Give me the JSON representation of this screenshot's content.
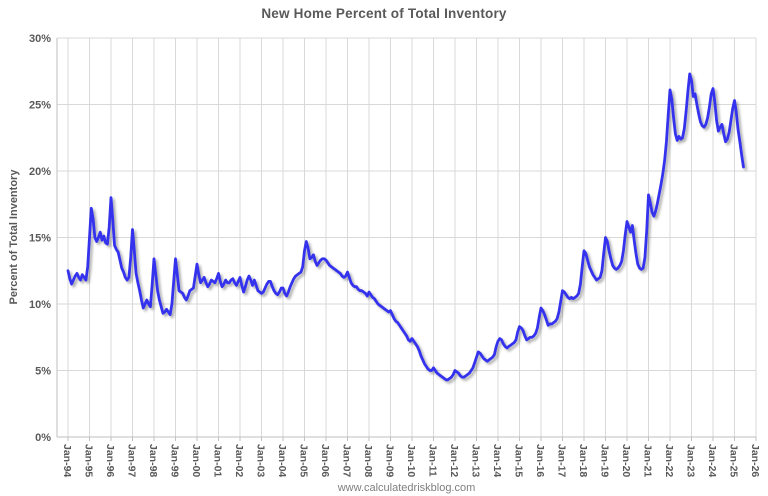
{
  "title": "New Home Percent of Total Inventory",
  "watermark": "www.calculatedriskblog.com",
  "chart_data": {
    "type": "line",
    "title": "New Home Percent of Total Inventory",
    "xlabel": "",
    "ylabel": "Percent of Total Inventory",
    "ylim": [
      0,
      30
    ],
    "y_tick_labels": [
      "0%",
      "5%",
      "10%",
      "15%",
      "20%",
      "25%",
      "30%"
    ],
    "x_tick_labels": [
      "Jan-94",
      "Jan-95",
      "Jan-96",
      "Jan-97",
      "Jan-98",
      "Jan-99",
      "Jan-00",
      "Jan-01",
      "Jan-02",
      "Jan-03",
      "Jan-04",
      "Jan-05",
      "Jan-06",
      "Jan-07",
      "Jan-08",
      "Jan-09",
      "Jan-10",
      "Jan-11",
      "Jan-12",
      "Jan-13",
      "Jan-14",
      "Jan-15",
      "Jan-16",
      "Jan-17",
      "Jan-18",
      "Jan-19",
      "Jan-20",
      "Jan-21",
      "Jan-22",
      "Jan-23",
      "Jan-24",
      "Jan-25",
      "Jan-26"
    ],
    "grid": true,
    "legend": "none",
    "frequency": "monthly",
    "x_start": "Jan-1994",
    "x_end": "Jun-2025",
    "line_color": "#3433EE",
    "grid_color": "#D9D9D9",
    "axis_color": "#BFBFBF",
    "label_color": "#595959",
    "series": [
      {
        "name": "New Home Percent of Total Inventory",
        "values": [
          12.5,
          11.9,
          11.5,
          11.8,
          12.1,
          12.3,
          12.0,
          11.8,
          12.2,
          12.0,
          11.8,
          12.8,
          15.0,
          17.2,
          16.4,
          15.0,
          14.7,
          15.0,
          15.4,
          14.8,
          15.1,
          14.6,
          14.5,
          15.8,
          18.0,
          16.3,
          14.4,
          14.1,
          13.9,
          13.3,
          12.7,
          12.4,
          12.0,
          11.8,
          12.0,
          13.5,
          15.6,
          14.0,
          12.3,
          11.6,
          11.0,
          10.3,
          9.7,
          10.0,
          10.3,
          10.0,
          9.8,
          11.5,
          13.4,
          12.2,
          11.0,
          10.3,
          9.8,
          9.3,
          9.4,
          9.6,
          9.4,
          9.2,
          10.0,
          11.7,
          13.4,
          12.2,
          11.0,
          10.9,
          10.8,
          10.5,
          10.3,
          10.6,
          11.0,
          11.1,
          11.2,
          12.1,
          13.0,
          12.2,
          11.6,
          11.8,
          12.0,
          11.6,
          11.3,
          11.5,
          11.8,
          11.7,
          11.6,
          11.9,
          12.3,
          11.7,
          11.3,
          11.5,
          11.8,
          11.6,
          11.6,
          11.8,
          11.9,
          11.6,
          11.4,
          11.7,
          12.0,
          11.4,
          10.9,
          11.3,
          11.8,
          12.1,
          11.8,
          11.4,
          11.8,
          11.4,
          11.0,
          10.9,
          10.8,
          10.9,
          11.2,
          11.5,
          11.7,
          11.7,
          11.3,
          11.0,
          10.8,
          10.7,
          10.9,
          11.2,
          11.2,
          10.8,
          10.6,
          10.9,
          11.3,
          11.6,
          11.9,
          12.1,
          12.2,
          12.3,
          12.4,
          12.8,
          14.0,
          14.7,
          14.2,
          13.4,
          13.5,
          13.7,
          13.2,
          12.9,
          13.1,
          13.3,
          13.4,
          13.4,
          13.3,
          13.1,
          12.9,
          12.8,
          12.7,
          12.6,
          12.5,
          12.4,
          12.3,
          12.1,
          12.0,
          12.1,
          12.4,
          12.0,
          11.6,
          11.4,
          11.3,
          11.3,
          11.1,
          11.0,
          11.0,
          10.9,
          10.8,
          10.6,
          10.9,
          10.7,
          10.5,
          10.4,
          10.2,
          10.0,
          9.9,
          9.8,
          9.7,
          9.6,
          9.5,
          9.4,
          9.5,
          9.2,
          8.9,
          8.7,
          8.6,
          8.4,
          8.2,
          8.0,
          7.8,
          7.6,
          7.3,
          7.2,
          7.4,
          7.2,
          7.0,
          6.8,
          6.5,
          6.1,
          5.8,
          5.5,
          5.3,
          5.1,
          5.0,
          5.0,
          5.2,
          5.0,
          4.8,
          4.7,
          4.6,
          4.5,
          4.4,
          4.3,
          4.3,
          4.4,
          4.5,
          4.7,
          5.0,
          4.9,
          4.8,
          4.6,
          4.5,
          4.5,
          4.6,
          4.7,
          4.8,
          5.0,
          5.2,
          5.6,
          6.0,
          6.4,
          6.3,
          6.1,
          5.9,
          5.8,
          5.7,
          5.8,
          5.9,
          6.0,
          6.2,
          6.8,
          7.2,
          7.4,
          7.3,
          7.0,
          6.8,
          6.7,
          6.8,
          6.9,
          7.0,
          7.1,
          7.3,
          7.9,
          8.3,
          8.2,
          8.0,
          7.6,
          7.3,
          7.4,
          7.5,
          7.5,
          7.6,
          7.8,
          8.2,
          9.0,
          9.7,
          9.5,
          9.2,
          8.8,
          8.4,
          8.5,
          8.5,
          8.6,
          8.7,
          8.9,
          9.4,
          10.2,
          11.0,
          10.9,
          10.7,
          10.5,
          10.4,
          10.5,
          10.4,
          10.5,
          10.6,
          10.8,
          11.5,
          12.8,
          14.0,
          13.8,
          13.3,
          12.8,
          12.5,
          12.2,
          12.0,
          11.8,
          11.9,
          12.0,
          12.5,
          13.8,
          15.0,
          14.7,
          14.0,
          13.4,
          12.9,
          12.7,
          12.6,
          12.7,
          12.9,
          13.2,
          14.0,
          15.2,
          16.2,
          15.8,
          15.4,
          15.9,
          14.8,
          13.8,
          13.0,
          12.7,
          12.6,
          12.7,
          13.5,
          15.5,
          18.2,
          17.6,
          16.9,
          16.6,
          17.0,
          17.6,
          18.3,
          19.0,
          19.8,
          20.8,
          22.2,
          24.2,
          26.1,
          25.4,
          24.0,
          22.8,
          22.3,
          22.6,
          22.4,
          22.5,
          23.2,
          24.5,
          26.0,
          27.3,
          26.8,
          25.6,
          25.8,
          25.0,
          24.3,
          23.7,
          23.4,
          23.3,
          23.5,
          24.0,
          24.8,
          25.8,
          26.2,
          25.2,
          23.8,
          23.0,
          23.3,
          23.5,
          22.8,
          22.2,
          22.4,
          22.9,
          23.8,
          24.7,
          25.3,
          24.4,
          23.1,
          22.2,
          21.2,
          20.3
        ]
      }
    ]
  }
}
